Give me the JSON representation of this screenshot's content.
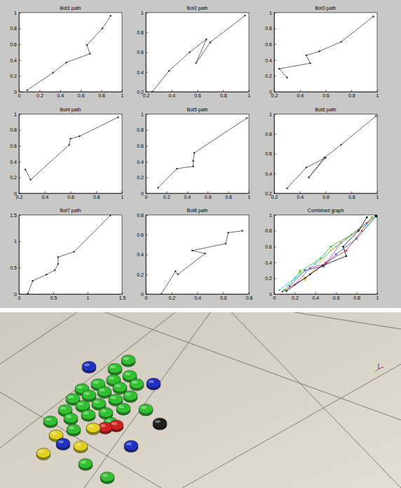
{
  "chart_data": [
    {
      "type": "line",
      "title": "Bot1 path",
      "color": "#404040",
      "marker": "dot",
      "x": [
        0.08,
        0.33,
        0.46,
        0.69,
        0.66,
        0.81,
        0.89
      ],
      "values": [
        0.02,
        0.24,
        0.37,
        0.48,
        0.59,
        0.8,
        0.96
      ],
      "xlim": [
        0,
        1
      ],
      "ylim": [
        0,
        1
      ],
      "xticks": [
        0,
        0.2,
        0.4,
        0.6,
        0.8,
        1
      ],
      "yticks": [
        0,
        0.2,
        0.4,
        0.6,
        0.8,
        1
      ]
    },
    {
      "type": "line",
      "title": "Bot2 path",
      "color": "#404040",
      "marker": "dot",
      "x": [
        0.25,
        0.38,
        0.54,
        0.67,
        0.59,
        0.7,
        0.97
      ],
      "values": [
        0.2,
        0.41,
        0.6,
        0.73,
        0.49,
        0.7,
        0.97
      ],
      "xlim": [
        0.2,
        1
      ],
      "ylim": [
        0.2,
        1
      ],
      "xticks": [
        0.2,
        0.4,
        0.6,
        0.8,
        1
      ],
      "yticks": [
        0.2,
        0.4,
        0.6,
        0.8,
        1
      ]
    },
    {
      "type": "line",
      "title": "Bot3 path",
      "color": "#404040",
      "marker": "dot",
      "x": [
        0.3,
        0.24,
        0.48,
        0.45,
        0.55,
        0.72,
        0.97
      ],
      "values": [
        0.18,
        0.29,
        0.36,
        0.46,
        0.51,
        0.63,
        0.95
      ],
      "xlim": [
        0.2,
        1
      ],
      "ylim": [
        0,
        1
      ],
      "xticks": [
        0.2,
        0.4,
        0.6,
        0.8,
        1
      ],
      "yticks": [
        0,
        0.2,
        0.4,
        0.6,
        0.8,
        1
      ]
    },
    {
      "type": "line",
      "title": "Bot4 path",
      "color": "#404040",
      "marker": "dot",
      "x": [
        0.25,
        0.29,
        0.59,
        0.6,
        0.67,
        0.97
      ],
      "values": [
        0.3,
        0.17,
        0.61,
        0.69,
        0.72,
        0.96
      ],
      "xlim": [
        0.2,
        1
      ],
      "ylim": [
        0,
        1
      ],
      "xticks": [
        0.2,
        0.4,
        0.6,
        0.8,
        1
      ],
      "yticks": [
        0,
        0.2,
        0.4,
        0.6,
        0.8,
        1
      ]
    },
    {
      "type": "line",
      "title": "Bot5 path",
      "color": "#404040",
      "marker": "dot",
      "x": [
        0.12,
        0.3,
        0.46,
        0.46,
        0.47,
        0.98
      ],
      "values": [
        0.07,
        0.31,
        0.34,
        0.41,
        0.51,
        0.95
      ],
      "xlim": [
        0,
        1
      ],
      "ylim": [
        0,
        1
      ],
      "xticks": [
        0,
        0.2,
        0.4,
        0.6,
        0.8,
        1
      ],
      "yticks": [
        0,
        0.2,
        0.4,
        0.6,
        0.8,
        1
      ]
    },
    {
      "type": "line",
      "title": "Bot6 path",
      "color": "#404040",
      "marker": "dot",
      "x": [
        0.3,
        0.45,
        0.6,
        0.47,
        0.59,
        0.72,
        0.99
      ],
      "values": [
        0.25,
        0.46,
        0.56,
        0.36,
        0.56,
        0.69,
        0.98
      ],
      "xlim": [
        0.2,
        1
      ],
      "ylim": [
        0.2,
        1
      ],
      "xticks": [
        0.2,
        0.4,
        0.6,
        0.8,
        1
      ],
      "yticks": [
        0.2,
        0.4,
        0.6,
        0.8,
        1
      ]
    },
    {
      "type": "line",
      "title": "Bot7 path",
      "color": "#404040",
      "marker": "dot",
      "x": [
        0.13,
        0.2,
        0.4,
        0.52,
        0.57,
        0.57,
        0.8,
        1.33
      ],
      "values": [
        0.01,
        0.25,
        0.37,
        0.45,
        0.57,
        0.7,
        0.8,
        1.49
      ],
      "xlim": [
        0,
        1.5
      ],
      "ylim": [
        0,
        1.5
      ],
      "xticks": [
        0,
        0.5,
        1,
        1.5
      ],
      "yticks": [
        0,
        0.5,
        1,
        1.5
      ]
    },
    {
      "type": "line",
      "title": "Bot8 path",
      "color": "#404040",
      "marker": "dot",
      "x": [
        0.12,
        0.23,
        0.25,
        0.46,
        0.36,
        0.62,
        0.64,
        0.75
      ],
      "values": [
        0.0,
        0.23,
        0.2,
        0.41,
        0.44,
        0.51,
        0.62,
        0.64
      ],
      "xlim": [
        0,
        0.8
      ],
      "ylim": [
        0,
        0.8
      ],
      "xticks": [
        0,
        0.2,
        0.4,
        0.6,
        0.8
      ],
      "yticks": [
        0,
        0.2,
        0.4,
        0.6,
        0.8
      ]
    },
    {
      "type": "line",
      "title": "Combined graph",
      "series": [
        {
          "color": "#e02020",
          "marker": "dot",
          "x": [
            0.08,
            0.3,
            0.5,
            0.7,
            0.85,
            0.95
          ],
          "values": [
            0.03,
            0.2,
            0.4,
            0.55,
            0.8,
            0.97
          ]
        },
        {
          "color": "#20c020",
          "marker": "dot",
          "x": [
            0.1,
            0.25,
            0.45,
            0.55,
            0.75,
            0.98
          ],
          "values": [
            0.05,
            0.28,
            0.45,
            0.6,
            0.75,
            0.98
          ]
        },
        {
          "color": "#2040e0",
          "marker": "dot",
          "x": [
            0.15,
            0.3,
            0.48,
            0.6,
            0.8,
            1
          ],
          "values": [
            0.1,
            0.3,
            0.35,
            0.5,
            0.7,
            1
          ]
        },
        {
          "color": "#20d0e0",
          "marker": "dot",
          "x": [
            0.05,
            0.2,
            0.4,
            0.6,
            0.9,
            1
          ],
          "values": [
            0.05,
            0.2,
            0.38,
            0.6,
            0.88,
            1
          ]
        },
        {
          "color": "#d020d0",
          "marker": "dot",
          "x": [
            0.2,
            0.35,
            0.5,
            0.65,
            0.9
          ],
          "values": [
            0.12,
            0.33,
            0.38,
            0.65,
            0.9
          ]
        },
        {
          "color": "#c0c020",
          "marker": "dot",
          "x": [
            0.25,
            0.3,
            0.55,
            0.7,
            0.95
          ],
          "values": [
            0.3,
            0.18,
            0.55,
            0.7,
            0.96
          ]
        },
        {
          "color": "#000000",
          "marker": "dot",
          "x": [
            0.12,
            0.35,
            0.47,
            0.7,
            0.67,
            0.82,
            0.9
          ],
          "values": [
            0.04,
            0.25,
            0.36,
            0.48,
            0.6,
            0.8,
            0.97
          ]
        },
        {
          "color": "#000000",
          "marker": "circle",
          "x": [
            1
          ],
          "values": [
            1
          ]
        }
      ],
      "xlim": [
        0,
        1
      ],
      "ylim": [
        0,
        1
      ],
      "xticks": [
        0,
        0.2,
        0.4,
        0.6,
        0.8,
        1
      ],
      "yticks": [
        0,
        0.2,
        0.4,
        0.6,
        0.8,
        1
      ]
    }
  ]
}
